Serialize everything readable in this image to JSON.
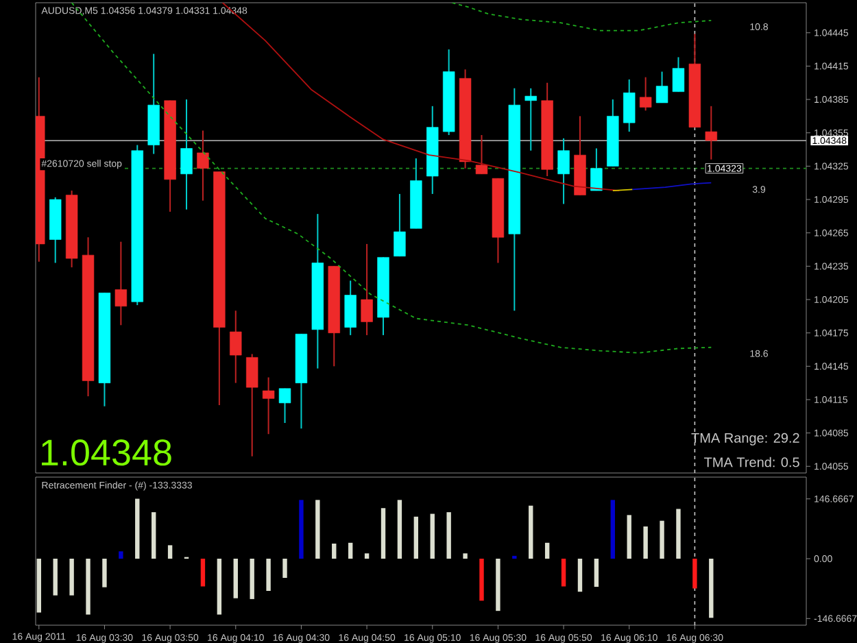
{
  "chart_data": [
    {
      "type": "candlestick",
      "title": "AUDUSD,M5 1.04356 1.04379 1.04331 1.04348",
      "x": [
        "2011-08-16T03:10",
        "2011-08-16T03:15",
        "2011-08-16T03:20",
        "2011-08-16T03:25",
        "2011-08-16T03:30",
        "2011-08-16T03:35",
        "2011-08-16T03:40",
        "2011-08-16T03:45",
        "2011-08-16T03:50",
        "2011-08-16T03:55",
        "2011-08-16T04:00",
        "2011-08-16T04:05",
        "2011-08-16T04:10",
        "2011-08-16T04:15",
        "2011-08-16T04:20",
        "2011-08-16T04:25",
        "2011-08-16T04:30",
        "2011-08-16T04:35",
        "2011-08-16T04:40",
        "2011-08-16T04:45",
        "2011-08-16T04:50",
        "2011-08-16T04:55",
        "2011-08-16T05:00",
        "2011-08-16T05:05",
        "2011-08-16T05:10",
        "2011-08-16T05:15",
        "2011-08-16T05:20",
        "2011-08-16T05:25",
        "2011-08-16T05:30",
        "2011-08-16T05:35",
        "2011-08-16T05:40",
        "2011-08-16T05:45",
        "2011-08-16T05:50",
        "2011-08-16T05:55",
        "2011-08-16T06:00",
        "2011-08-16T06:05",
        "2011-08-16T06:10",
        "2011-08-16T06:15",
        "2011-08-16T06:20",
        "2011-08-16T06:25",
        "2011-08-16T06:30",
        "2011-08-16T06:35"
      ],
      "ohlc": [
        [
          1.0437,
          1.04405,
          1.04239,
          1.04255
        ],
        [
          1.04259,
          1.04297,
          1.04238,
          1.04295
        ],
        [
          1.04299,
          1.04303,
          1.04234,
          1.04242
        ],
        [
          1.04245,
          1.04261,
          1.04118,
          1.04132
        ],
        [
          1.0413,
          1.04211,
          1.04109,
          1.04211
        ],
        [
          1.04214,
          1.04257,
          1.04182,
          1.04199
        ],
        [
          1.04203,
          1.04344,
          1.042,
          1.04339
        ],
        [
          1.04344,
          1.04426,
          1.04336,
          1.0438
        ],
        [
          1.04384,
          1.04384,
          1.04284,
          1.04313
        ],
        [
          1.04318,
          1.04385,
          1.04286,
          1.04341
        ],
        [
          1.04337,
          1.04357,
          1.04294,
          1.04323
        ],
        [
          1.0432,
          1.0432,
          1.0411,
          1.0418
        ],
        [
          1.04176,
          1.04195,
          1.0413,
          1.04155
        ],
        [
          1.04153,
          1.04156,
          1.04064,
          1.04126
        ],
        [
          1.04123,
          1.04135,
          1.04084,
          1.04116
        ],
        [
          1.04112,
          1.04125,
          1.04094,
          1.04125
        ],
        [
          1.0413,
          1.04174,
          1.04089,
          1.04174
        ],
        [
          1.04178,
          1.04282,
          1.04143,
          1.04238
        ],
        [
          1.04235,
          1.04235,
          1.04145,
          1.04175
        ],
        [
          1.0418,
          1.04222,
          1.04173,
          1.04209
        ],
        [
          1.04205,
          1.04255,
          1.04173,
          1.04185
        ],
        [
          1.04189,
          1.04243,
          1.04173,
          1.04243
        ],
        [
          1.04244,
          1.043,
          1.04244,
          1.04266
        ],
        [
          1.04269,
          1.04332,
          1.04269,
          1.04312
        ],
        [
          1.04316,
          1.04379,
          1.043,
          1.0436
        ],
        [
          1.04356,
          1.0443,
          1.04353,
          1.0441
        ],
        [
          1.04404,
          1.04412,
          1.04323,
          1.04329
        ],
        [
          1.04326,
          1.04353,
          1.04318,
          1.04318
        ],
        [
          1.04314,
          1.04314,
          1.04238,
          1.04261
        ],
        [
          1.04264,
          1.04395,
          1.04195,
          1.0438
        ],
        [
          1.04384,
          1.04395,
          1.04339,
          1.04388
        ],
        [
          1.04384,
          1.044,
          1.04316,
          1.04322
        ],
        [
          1.04318,
          1.0435,
          1.04291,
          1.04339
        ],
        [
          1.04335,
          1.0437,
          1.04299,
          1.04299
        ],
        [
          1.04303,
          1.04341,
          1.04303,
          1.04323
        ],
        [
          1.04325,
          1.04385,
          1.04325,
          1.0437
        ],
        [
          1.04364,
          1.04403,
          1.04356,
          1.04391
        ],
        [
          1.04387,
          1.04405,
          1.04375,
          1.04378
        ],
        [
          1.04382,
          1.0441,
          1.04382,
          1.04397
        ],
        [
          1.04392,
          1.04423,
          1.04392,
          1.04413
        ],
        [
          1.04417,
          1.04444,
          1.0436,
          1.0436
        ],
        [
          1.04356,
          1.04379,
          1.04331,
          1.04348
        ]
      ],
      "colors": [
        "#ee2a2a",
        "#00ffff",
        "#ee2a2a",
        "#ee2a2a",
        "#00ffff",
        "#ee2a2a",
        "#00ffff",
        "#00ffff",
        "#ee2a2a",
        "#00ffff",
        "#ee2a2a",
        "#ee2a2a",
        "#ee2a2a",
        "#ee2a2a",
        "#ee2a2a",
        "#00ffff",
        "#00ffff",
        "#00ffff",
        "#ee2a2a",
        "#00ffff",
        "#ee2a2a",
        "#00ffff",
        "#00ffff",
        "#00ffff",
        "#00ffff",
        "#00ffff",
        "#ee2a2a",
        "#ee2a2a",
        "#ee2a2a",
        "#00ffff",
        "#00ffff",
        "#ee2a2a",
        "#00ffff",
        "#ee2a2a",
        "#00ffff",
        "#00ffff",
        "#00ffff",
        "#ee2a2a",
        "#00ffff",
        "#00ffff",
        "#ee2a2a",
        "#ee2a2a"
      ],
      "series": [
        {
          "type": "line",
          "color": "#1fae1f",
          "line_style": "dashed",
          "x": [
            "2011-08-16T03:20",
            "2011-08-16T03:33",
            "2011-08-16T03:49",
            "2011-08-16T04:05",
            "2011-08-16T04:19",
            "2011-08-16T04:29",
            "2011-08-16T04:39",
            "2011-08-16T04:51",
            "2011-08-16T05:05",
            "2011-08-16T05:21",
            "2011-08-16T05:37",
            "2011-08-16T05:49",
            "2011-08-16T06:01",
            "2011-08-16T06:13",
            "2011-08-16T06:25",
            "2011-08-16T06:35"
          ],
          "values": [
            1.04472,
            1.04426,
            1.04373,
            1.04322,
            1.04278,
            1.04264,
            1.04242,
            1.0421,
            1.04188,
            1.04182,
            1.0417,
            1.04162,
            1.04159,
            1.04157,
            1.04161,
            1.04162
          ]
        },
        {
          "type": "line",
          "color": "#1fae1f",
          "line_style": "dashed",
          "x": [
            "2011-08-16T05:16",
            "2011-08-16T05:21",
            "2011-08-16T05:27",
            "2011-08-16T05:37",
            "2011-08-16T05:49",
            "2011-08-16T06:01",
            "2011-08-16T06:13",
            "2011-08-16T06:25",
            "2011-08-16T06:35"
          ],
          "values": [
            1.04472,
            1.04468,
            1.04462,
            1.04457,
            1.04454,
            1.04447,
            1.04447,
            1.04454,
            1.04456
          ]
        },
        {
          "type": "line",
          "color": "#b01010",
          "line_style": "solid",
          "x": [
            "2011-08-16T04:06",
            "2011-08-16T04:19",
            "2011-08-16T04:33",
            "2011-08-16T04:45",
            "2011-08-16T04:55",
            "2011-08-16T05:09",
            "2011-08-16T05:21",
            "2011-08-16T05:37",
            "2011-08-16T05:53",
            "2011-08-16T06:07"
          ],
          "values": [
            1.04472,
            1.04438,
            1.04394,
            1.04369,
            1.04349,
            1.04335,
            1.0433,
            1.04319,
            1.04307,
            1.04303
          ]
        },
        {
          "type": "line",
          "color": "#d8c800",
          "line_style": "solid",
          "x": [
            "2011-08-16T06:05",
            "2011-08-16T06:11"
          ],
          "values": [
            1.04303,
            1.04304
          ]
        },
        {
          "type": "line",
          "color": "#1010c8",
          "line_style": "solid",
          "x": [
            "2011-08-16T06:11",
            "2011-08-16T06:21",
            "2011-08-16T06:29",
            "2011-08-16T06:35"
          ],
          "values": [
            1.04304,
            1.04306,
            1.04309,
            1.0431
          ]
        }
      ],
      "xlim": [
        "2011-08-16T03:09",
        "2011-08-16T07:04"
      ],
      "ylim": [
        1.04049,
        1.04472
      ],
      "yticks": [
        1.04445,
        1.04415,
        1.04385,
        1.04355,
        1.04325,
        1.04295,
        1.04265,
        1.04235,
        1.04205,
        1.04175,
        1.04145,
        1.04115,
        1.04085,
        1.04055
      ],
      "tick_labels": "y",
      "ref_lines": [
        {
          "axis": "y",
          "value": 1.04348,
          "label": "1.04348",
          "color": "#a0a0a0",
          "line_style": "solid"
        },
        {
          "axis": "y",
          "value": 1.04323,
          "label": "#2610720 sell stop",
          "color": "#1f8f1f",
          "line_style": "dashed"
        },
        {
          "axis": "x",
          "value": "2011-08-16T06:30",
          "color": "#c8c8c8",
          "line_style": "dashed"
        }
      ],
      "annotations": [
        "10.8",
        "3.9",
        "18.6",
        {
          "text": "1.04323",
          "x": "2011-08-16T06:39",
          "y": 1.04323
        },
        "1.04348",
        "TMA Range: 29.2",
        "TMA Trend: 0.5"
      ]
    },
    {
      "type": "bar",
      "title": "Retracement Finder - (#) -133.3333",
      "x": [
        "2011-08-16T03:10",
        "2011-08-16T03:15",
        "2011-08-16T03:20",
        "2011-08-16T03:25",
        "2011-08-16T03:30",
        "2011-08-16T03:35",
        "2011-08-16T03:40",
        "2011-08-16T03:45",
        "2011-08-16T03:50",
        "2011-08-16T03:55",
        "2011-08-16T04:00",
        "2011-08-16T04:05",
        "2011-08-16T04:10",
        "2011-08-16T04:15",
        "2011-08-16T04:20",
        "2011-08-16T04:25",
        "2011-08-16T04:30",
        "2011-08-16T04:35",
        "2011-08-16T04:40",
        "2011-08-16T04:45",
        "2011-08-16T04:50",
        "2011-08-16T04:55",
        "2011-08-16T05:00",
        "2011-08-16T05:05",
        "2011-08-16T05:10",
        "2011-08-16T05:15",
        "2011-08-16T05:20",
        "2011-08-16T05:25",
        "2011-08-16T05:30",
        "2011-08-16T05:35",
        "2011-08-16T05:40",
        "2011-08-16T05:45",
        "2011-08-16T05:50",
        "2011-08-16T05:55",
        "2011-08-16T06:00",
        "2011-08-16T06:05",
        "2011-08-16T06:10",
        "2011-08-16T06:15",
        "2011-08-16T06:20",
        "2011-08-16T06:25",
        "2011-08-16T06:30",
        "2011-08-16T06:35"
      ],
      "values": [
        -132,
        -90,
        -90,
        -137,
        -70,
        18,
        147,
        114,
        33,
        4,
        -68,
        -137,
        -97,
        -99,
        -79,
        -47,
        144,
        144,
        37,
        39,
        13,
        124,
        144,
        103,
        110,
        114,
        13,
        -103,
        -128,
        7,
        130,
        39,
        -68,
        -81,
        -69,
        144,
        107,
        79,
        93,
        122,
        -73,
        -145
      ],
      "colors": [
        "#dcdfd0",
        "#dcdfd0",
        "#dcdfd0",
        "#dcdfd0",
        "#dcdfd0",
        "#0000cc",
        "#dcdfd0",
        "#dcdfd0",
        "#dcdfd0",
        "#dcdfd0",
        "#ff1a1a",
        "#dcdfd0",
        "#dcdfd0",
        "#dcdfd0",
        "#dcdfd0",
        "#dcdfd0",
        "#0000cc",
        "#dcdfd0",
        "#dcdfd0",
        "#dcdfd0",
        "#dcdfd0",
        "#dcdfd0",
        "#dcdfd0",
        "#dcdfd0",
        "#dcdfd0",
        "#dcdfd0",
        "#dcdfd0",
        "#ff1a1a",
        "#dcdfd0",
        "#0000cc",
        "#dcdfd0",
        "#dcdfd0",
        "#ff1a1a",
        "#dcdfd0",
        "#dcdfd0",
        "#0000cc",
        "#dcdfd0",
        "#dcdfd0",
        "#dcdfd0",
        "#dcdfd0",
        "#ff1a1a",
        "#dcdfd0"
      ],
      "xlim": [
        "2011-08-16T03:09",
        "2011-08-16T07:04"
      ],
      "ylim": [
        -163,
        200
      ],
      "xticks": [
        {
          "value": "2011-08-16T03:10",
          "label": null
        },
        {
          "value": "2011-08-16T03:30",
          "label": "16 Aug 03:30"
        },
        {
          "value": "2011-08-16T03:50",
          "label": "16 Aug 03:50"
        },
        {
          "value": "2011-08-16T04:10",
          "label": "16 Aug 04:10"
        },
        {
          "value": "2011-08-16T04:30",
          "label": "16 Aug 04:30"
        },
        {
          "value": "2011-08-16T04:50",
          "label": "16 Aug 04:50"
        },
        {
          "value": "2011-08-16T05:10",
          "label": "16 Aug 05:10"
        },
        {
          "value": "2011-08-16T05:30",
          "label": "16 Aug 05:30"
        },
        {
          "value": "2011-08-16T05:50",
          "label": "16 Aug 05:50"
        },
        {
          "value": "2011-08-16T06:10",
          "label": "16 Aug 06:10"
        },
        {
          "value": "2011-08-16T06:30",
          "label": "16 Aug 06:30"
        }
      ],
      "yticks": [
        146.6667,
        {
          "value": 0,
          "label": "0.00"
        },
        -146.6667
      ],
      "ref_lines": [
        {
          "axis": "x",
          "value": "2011-08-16T06:30",
          "color": "#c8c8c8",
          "line_style": "dashed"
        }
      ],
      "annotations": [
        "16 Aug 2011"
      ]
    }
  ]
}
